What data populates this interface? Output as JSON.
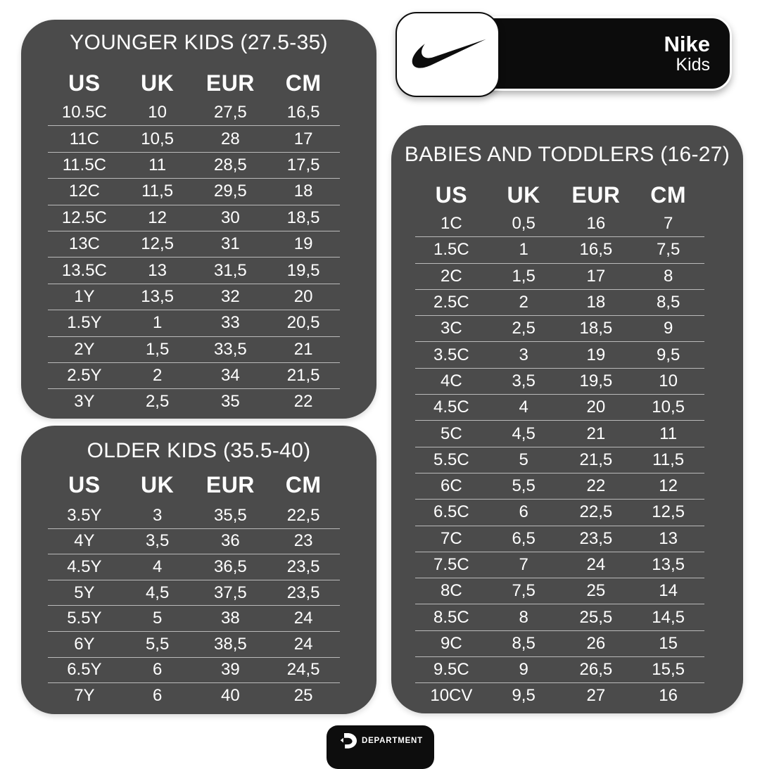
{
  "brand": {
    "name": "Nike",
    "subtitle": "Kids"
  },
  "footer": {
    "label": "DEPARTMENT"
  },
  "icons": {
    "swoosh": "nike-swoosh-icon",
    "footer_logo": "department-d-icon"
  },
  "colors": {
    "page_bg": "#ffffff",
    "card_bg": "#4b4b4b",
    "pill_bg": "#0c0c0c",
    "text": "#ffffff",
    "divider": "rgba(255,255,255,0.62)"
  },
  "tables": [
    {
      "id": "younger-kids",
      "title": "YOUNGER KIDS (27.5-35)",
      "headers": [
        "US",
        "UK",
        "EUR",
        "CM"
      ],
      "rows": [
        [
          "10.5C",
          "10",
          "27,5",
          "16,5"
        ],
        [
          "11C",
          "10,5",
          "28",
          "17"
        ],
        [
          "11.5C",
          "11",
          "28,5",
          "17,5"
        ],
        [
          "12C",
          "11,5",
          "29,5",
          "18"
        ],
        [
          "12.5C",
          "12",
          "30",
          "18,5"
        ],
        [
          "13C",
          "12,5",
          "31",
          "19"
        ],
        [
          "13.5C",
          "13",
          "31,5",
          "19,5"
        ],
        [
          "1Y",
          "13,5",
          "32",
          "20"
        ],
        [
          "1.5Y",
          "1",
          "33",
          "20,5"
        ],
        [
          "2Y",
          "1,5",
          "33,5",
          "21"
        ],
        [
          "2.5Y",
          "2",
          "34",
          "21,5"
        ],
        [
          "3Y",
          "2,5",
          "35",
          "22"
        ]
      ]
    },
    {
      "id": "older-kids",
      "title": "OLDER KIDS (35.5-40)",
      "headers": [
        "US",
        "UK",
        "EUR",
        "CM"
      ],
      "rows": [
        [
          "3.5Y",
          "3",
          "35,5",
          "22,5"
        ],
        [
          "4Y",
          "3,5",
          "36",
          "23"
        ],
        [
          "4.5Y",
          "4",
          "36,5",
          "23,5"
        ],
        [
          "5Y",
          "4,5",
          "37,5",
          "23,5"
        ],
        [
          "5.5Y",
          "5",
          "38",
          "24"
        ],
        [
          "6Y",
          "5,5",
          "38,5",
          "24"
        ],
        [
          "6.5Y",
          "6",
          "39",
          "24,5"
        ],
        [
          "7Y",
          "6",
          "40",
          "25"
        ]
      ]
    },
    {
      "id": "babies-toddlers",
      "title": "BABIES AND TODDLERS (16-27)",
      "headers": [
        "US",
        "UK",
        "EUR",
        "CM"
      ],
      "rows": [
        [
          "1C",
          "0,5",
          "16",
          "7"
        ],
        [
          "1.5C",
          "1",
          "16,5",
          "7,5"
        ],
        [
          "2C",
          "1,5",
          "17",
          "8"
        ],
        [
          "2.5C",
          "2",
          "18",
          "8,5"
        ],
        [
          "3C",
          "2,5",
          "18,5",
          "9"
        ],
        [
          "3.5C",
          "3",
          "19",
          "9,5"
        ],
        [
          "4C",
          "3,5",
          "19,5",
          "10"
        ],
        [
          "4.5C",
          "4",
          "20",
          "10,5"
        ],
        [
          "5C",
          "4,5",
          "21",
          "11"
        ],
        [
          "5.5C",
          "5",
          "21,5",
          "11,5"
        ],
        [
          "6C",
          "5,5",
          "22",
          "12"
        ],
        [
          "6.5C",
          "6",
          "22,5",
          "12,5"
        ],
        [
          "7C",
          "6,5",
          "23,5",
          "13"
        ],
        [
          "7.5C",
          "7",
          "24",
          "13,5"
        ],
        [
          "8C",
          "7,5",
          "25",
          "14"
        ],
        [
          "8.5C",
          "8",
          "25,5",
          "14,5"
        ],
        [
          "9C",
          "8,5",
          "26",
          "15"
        ],
        [
          "9.5C",
          "9",
          "26,5",
          "15,5"
        ],
        [
          "10CV",
          "9,5",
          "27",
          "16"
        ]
      ]
    }
  ]
}
